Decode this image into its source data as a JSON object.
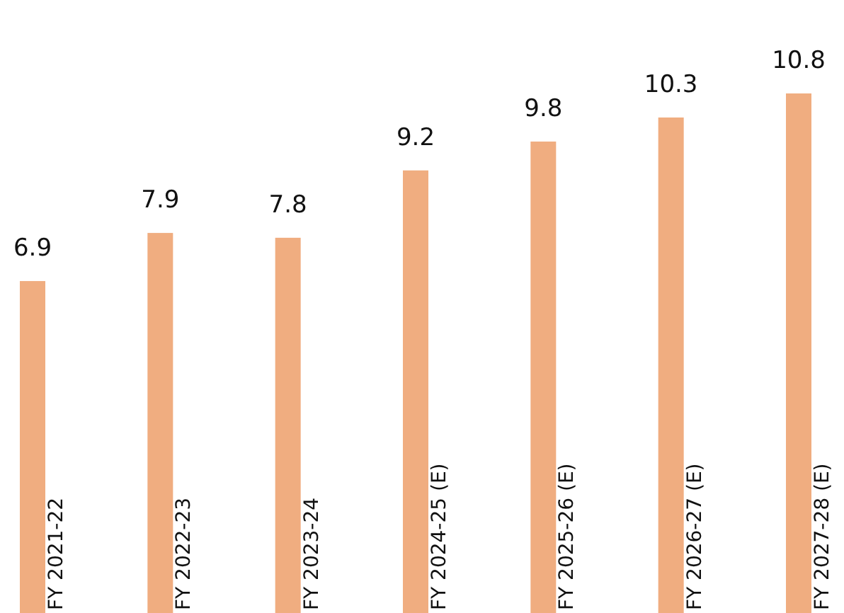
{
  "chart_data": {
    "type": "bar",
    "categories": [
      "FY 2021-22",
      "FY 2022-23",
      "FY 2023-24",
      "FY 2024-25 (E)",
      "FY 2025-26 (E)",
      "FY 2026-27 (E)",
      "FY 2027-28 (E)"
    ],
    "values": [
      6.9,
      7.9,
      7.8,
      9.2,
      9.8,
      10.3,
      10.8
    ],
    "color": "#f0ad80",
    "data_labels": true
  }
}
